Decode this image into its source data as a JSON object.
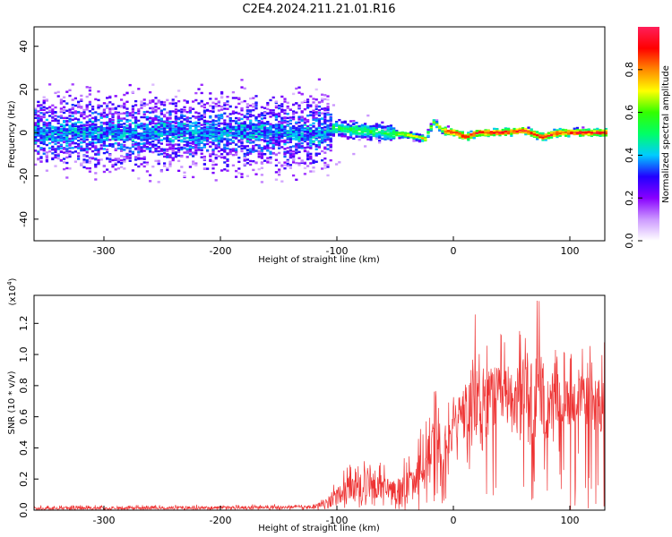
{
  "chart_data": [
    {
      "type": "heatmap",
      "title": "C2E4.2024.211.21.01.R16",
      "xlabel": "Height of straight line (km)",
      "ylabel": "Frequency (Hz)",
      "xlim": [
        -360,
        130
      ],
      "ylim": [
        -50,
        49
      ],
      "xticks": [
        -300,
        -200,
        -100,
        0,
        100
      ],
      "yticks": [
        -40,
        -20,
        0,
        20,
        40
      ],
      "colorbar": {
        "label": "Normalized spectral amplitude",
        "range": [
          0.0,
          1.0
        ],
        "ticks": [
          0.0,
          0.2,
          0.4,
          0.6,
          0.8
        ],
        "colors": [
          "#ffffff",
          "#cc99ff",
          "#8800ff",
          "#2200ff",
          "#00ccff",
          "#00ff66",
          "#33ff00",
          "#ffff00",
          "#ff8800",
          "#ff0000",
          "#ff1f5a"
        ]
      },
      "ridge": {
        "description": "Signal concentrated near 0 Hz; broad noisy spread for heights below about -105 km, narrowing to a tight high-amplitude band above about -50 km.",
        "points": [
          [
            -100,
            2
          ],
          [
            -80,
            1
          ],
          [
            -60,
            0
          ],
          [
            -40,
            -1
          ],
          [
            -25,
            -3
          ],
          [
            -18,
            5
          ],
          [
            -10,
            1
          ],
          [
            0,
            0
          ],
          [
            10,
            -2
          ],
          [
            20,
            0
          ],
          [
            40,
            0
          ],
          [
            60,
            1
          ],
          [
            75,
            -2
          ],
          [
            90,
            0
          ],
          [
            110,
            0
          ],
          [
            130,
            0
          ]
        ]
      }
    },
    {
      "type": "line",
      "xlabel": "Height of straight line (km)",
      "ylabel": "SNR (10 * v/v)",
      "ylabel_scale": "(x10",
      "ylabel_scale_exp": "4",
      "xlim": [
        -360,
        130
      ],
      "ylim": [
        0,
        1.38
      ],
      "xticks": [
        -300,
        -200,
        -100,
        0,
        100
      ],
      "yticks": [
        0.0,
        0.2,
        0.4,
        0.6,
        0.8,
        1.0,
        1.2
      ],
      "series": [
        {
          "name": "SNR",
          "color": "#ee3333",
          "envelope_x": [
            -360,
            -120,
            -105,
            -90,
            -70,
            -50,
            -35,
            -25,
            -15,
            -5,
            5,
            20,
            40,
            60,
            75,
            90,
            110,
            130
          ],
          "envelope_mean": [
            0.01,
            0.02,
            0.06,
            0.14,
            0.16,
            0.13,
            0.18,
            0.3,
            0.4,
            0.45,
            0.6,
            0.7,
            0.72,
            0.72,
            0.7,
            0.68,
            0.7,
            0.68
          ],
          "envelope_peak": [
            0.03,
            0.04,
            0.15,
            0.3,
            0.35,
            0.28,
            0.4,
            0.58,
            0.8,
            0.72,
            0.95,
            1.3,
            1.15,
            1.28,
            1.37,
            1.0,
            1.08,
            1.1
          ]
        }
      ]
    }
  ]
}
